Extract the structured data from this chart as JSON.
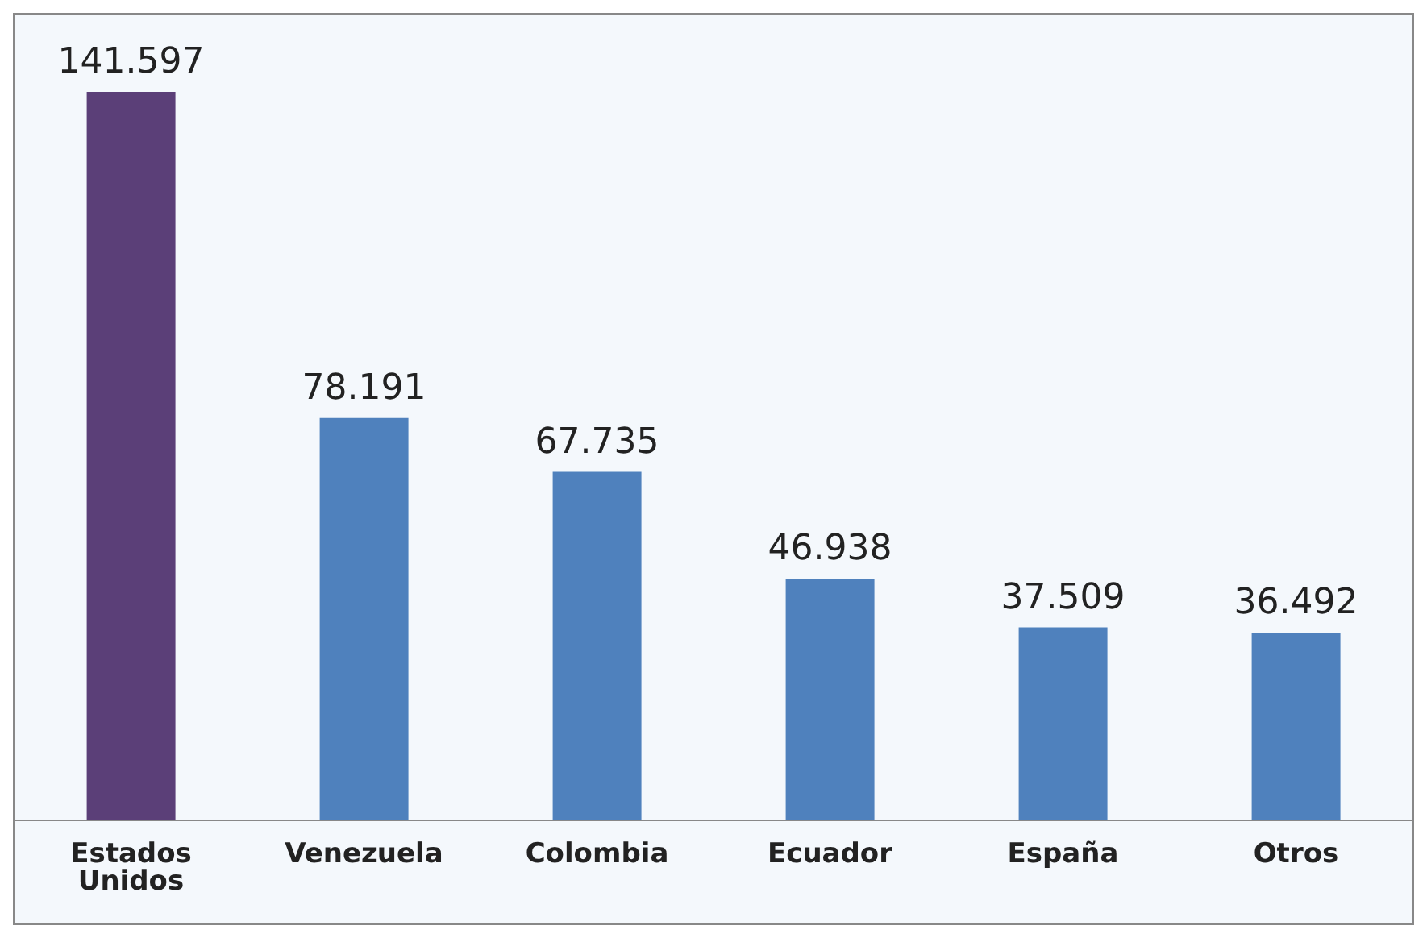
{
  "chart_data": {
    "type": "bar",
    "categories": [
      "Estados Unidos",
      "Venezuela",
      "Colombia",
      "Ecuador",
      "España",
      "Otros"
    ],
    "values": [
      141597,
      78191,
      67735,
      46938,
      37509,
      36492
    ],
    "colors": [
      "#5b3f78",
      "#4f81bd",
      "#4f81bd",
      "#4f81bd",
      "#4f81bd",
      "#4f81bd"
    ],
    "value_labels": [
      "141.597",
      "78.191",
      "67.735",
      "46.938",
      "37.509",
      "36.492"
    ],
    "grid": false,
    "legend": false
  }
}
